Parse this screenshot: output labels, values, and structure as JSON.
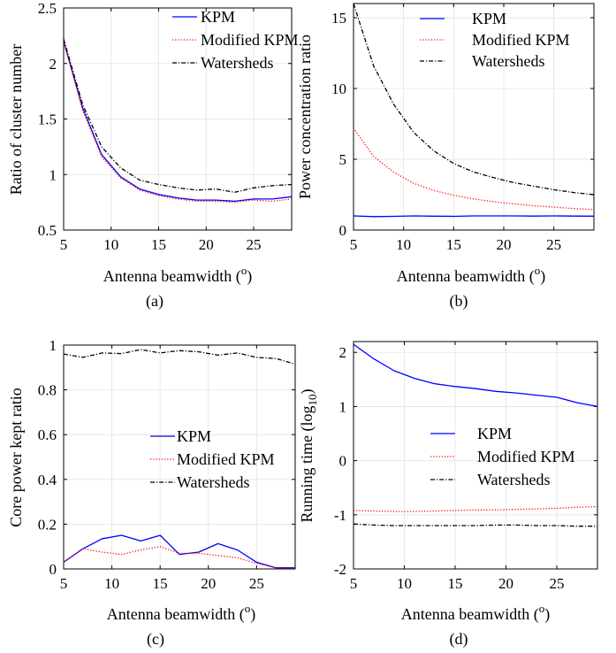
{
  "chart_data": [
    {
      "type": "line",
      "caption": "(a)",
      "xlabel": "Antenna beamwidth (",
      "xlabel_sup": "o",
      "xlabel_tail": ")",
      "ylabel": "Ratio of cluster number",
      "xlim": [
        5,
        29
      ],
      "ylim": [
        0.5,
        2.5
      ],
      "xticks": [
        5,
        10,
        15,
        20,
        25
      ],
      "yticks": [
        0.5,
        1,
        1.5,
        2,
        2.5
      ],
      "ytick_labels": [
        "0.5",
        "1",
        "1.5",
        "2",
        "2.5"
      ],
      "legend_position": "top-right",
      "x": [
        5,
        7,
        9,
        11,
        13,
        15,
        17,
        19,
        21,
        23,
        25,
        27,
        29
      ],
      "series": [
        {
          "name": "KPM",
          "color": "#0000ff",
          "dash": "solid",
          "values": [
            2.2,
            1.6,
            1.18,
            0.98,
            0.87,
            0.82,
            0.79,
            0.77,
            0.77,
            0.76,
            0.78,
            0.78,
            0.8
          ]
        },
        {
          "name": "Modified KPM",
          "color": "#ff0000",
          "dash": "dotted",
          "values": [
            2.2,
            1.58,
            1.16,
            0.97,
            0.86,
            0.81,
            0.78,
            0.76,
            0.76,
            0.75,
            0.77,
            0.76,
            0.78
          ]
        },
        {
          "name": "Watersheds",
          "color": "#000000",
          "dash": "dashdot",
          "values": [
            2.22,
            1.63,
            1.25,
            1.06,
            0.95,
            0.91,
            0.88,
            0.86,
            0.87,
            0.84,
            0.88,
            0.9,
            0.91
          ]
        }
      ]
    },
    {
      "type": "line",
      "caption": "(b)",
      "xlabel": "Antenna beamwidth (",
      "xlabel_sup": "o",
      "xlabel_tail": ")",
      "ylabel": "Power concentration ratio",
      "xlim": [
        5,
        29
      ],
      "ylim": [
        0,
        16
      ],
      "xticks": [
        5,
        10,
        15,
        20,
        25
      ],
      "yticks": [
        0,
        5,
        10,
        15
      ],
      "ytick_labels": [
        "0",
        "5",
        "10",
        "15"
      ],
      "legend_position": "top-right",
      "x": [
        5,
        7,
        9,
        11,
        13,
        15,
        17,
        19,
        21,
        23,
        25,
        27,
        29
      ],
      "series": [
        {
          "name": "KPM",
          "color": "#0000ff",
          "dash": "solid",
          "values": [
            1.0,
            0.95,
            0.97,
            1.0,
            0.98,
            0.97,
            1.0,
            1.0,
            1.0,
            0.99,
            1.0,
            0.99,
            0.98
          ]
        },
        {
          "name": "Modified KPM",
          "color": "#ff0000",
          "dash": "dotted",
          "values": [
            7.2,
            5.2,
            4.1,
            3.3,
            2.8,
            2.45,
            2.2,
            2.0,
            1.85,
            1.72,
            1.62,
            1.52,
            1.45
          ]
        },
        {
          "name": "Watersheds",
          "color": "#000000",
          "dash": "dashdot",
          "values": [
            16.0,
            11.6,
            8.9,
            6.9,
            5.6,
            4.7,
            4.1,
            3.7,
            3.35,
            3.1,
            2.85,
            2.65,
            2.5
          ]
        }
      ]
    },
    {
      "type": "line",
      "caption": "(c)",
      "xlabel": "Antenna beamwidth (",
      "xlabel_sup": "o",
      "xlabel_tail": ")",
      "ylabel": "Core power kept ratio",
      "xlim": [
        5,
        29
      ],
      "ylim": [
        0,
        1
      ],
      "xticks": [
        5,
        10,
        15,
        20,
        25
      ],
      "yticks": [
        0,
        0.2,
        0.4,
        0.6,
        0.8,
        1
      ],
      "ytick_labels": [
        "0",
        "0.2",
        "0.4",
        "0.6",
        "0.8",
        "1"
      ],
      "legend_position": "center-right",
      "x": [
        5,
        7,
        9,
        11,
        13,
        15,
        17,
        19,
        21,
        23,
        25,
        27,
        29
      ],
      "series": [
        {
          "name": "KPM",
          "color": "#0000ff",
          "dash": "solid",
          "values": [
            0.03,
            0.09,
            0.135,
            0.15,
            0.125,
            0.15,
            0.065,
            0.075,
            0.113,
            0.085,
            0.03,
            0.005,
            0.005
          ]
        },
        {
          "name": "Modified KPM",
          "color": "#ff0000",
          "dash": "dotted",
          "values": [
            0.03,
            0.09,
            0.075,
            0.065,
            0.085,
            0.1,
            0.07,
            0.07,
            0.06,
            0.05,
            0.025,
            0.005,
            0.005
          ]
        },
        {
          "name": "Watersheds",
          "color": "#000000",
          "dash": "dashdot",
          "values": [
            0.96,
            0.945,
            0.965,
            0.962,
            0.98,
            0.965,
            0.975,
            0.97,
            0.955,
            0.965,
            0.945,
            0.94,
            0.915
          ]
        }
      ]
    },
    {
      "type": "line",
      "caption": "(d)",
      "xlabel": "Antenna beamwidth (",
      "xlabel_sup": "o",
      "xlabel_tail": ")",
      "ylabel": "Running time (log",
      "ylabel_sub": "10",
      "ylabel_tail": ")",
      "xlim": [
        5,
        29
      ],
      "ylim": [
        -2,
        2.2
      ],
      "xticks": [
        5,
        10,
        15,
        20,
        25
      ],
      "yticks": [
        -2,
        -1,
        0,
        1,
        2
      ],
      "ytick_labels": [
        "-2",
        "-1",
        "0",
        "1",
        "2"
      ],
      "legend_position": "center-right",
      "x": [
        5,
        7,
        9,
        11,
        13,
        15,
        17,
        19,
        21,
        23,
        25,
        27,
        29
      ],
      "series": [
        {
          "name": "KPM",
          "color": "#0000ff",
          "dash": "solid",
          "values": [
            2.15,
            1.88,
            1.66,
            1.52,
            1.42,
            1.37,
            1.33,
            1.28,
            1.25,
            1.21,
            1.17,
            1.07,
            1.0
          ]
        },
        {
          "name": "Modified KPM",
          "color": "#ff0000",
          "dash": "dotted",
          "values": [
            -0.92,
            -0.93,
            -0.94,
            -0.94,
            -0.93,
            -0.92,
            -0.91,
            -0.91,
            -0.9,
            -0.89,
            -0.88,
            -0.86,
            -0.85
          ]
        },
        {
          "name": "Watersheds",
          "color": "#000000",
          "dash": "dashdot",
          "values": [
            -1.17,
            -1.19,
            -1.2,
            -1.2,
            -1.2,
            -1.2,
            -1.2,
            -1.19,
            -1.19,
            -1.2,
            -1.2,
            -1.21,
            -1.21
          ]
        }
      ]
    }
  ]
}
